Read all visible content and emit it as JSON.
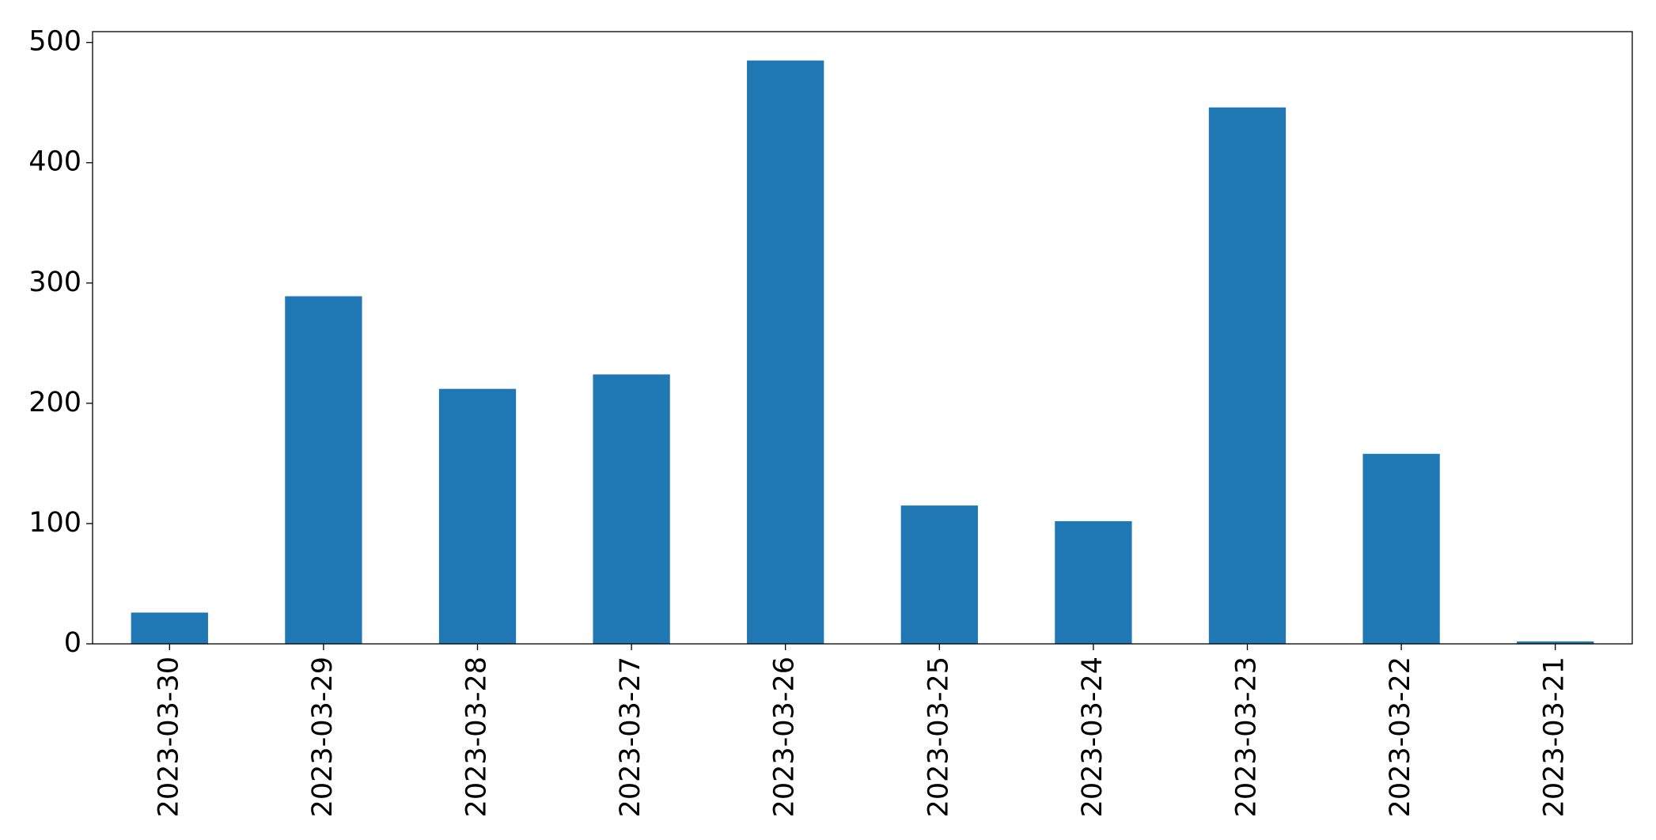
{
  "chart_data": {
    "type": "bar",
    "categories": [
      "2023-03-30",
      "2023-03-29",
      "2023-03-28",
      "2023-03-27",
      "2023-03-26",
      "2023-03-25",
      "2023-03-24",
      "2023-03-23",
      "2023-03-22",
      "2023-03-21"
    ],
    "values": [
      26,
      289,
      212,
      224,
      485,
      115,
      102,
      446,
      158,
      2
    ],
    "color": "#1f77b4",
    "ylim": [
      0,
      509
    ],
    "yticks": [
      0,
      100,
      200,
      300,
      400,
      500
    ],
    "grid": false
  }
}
